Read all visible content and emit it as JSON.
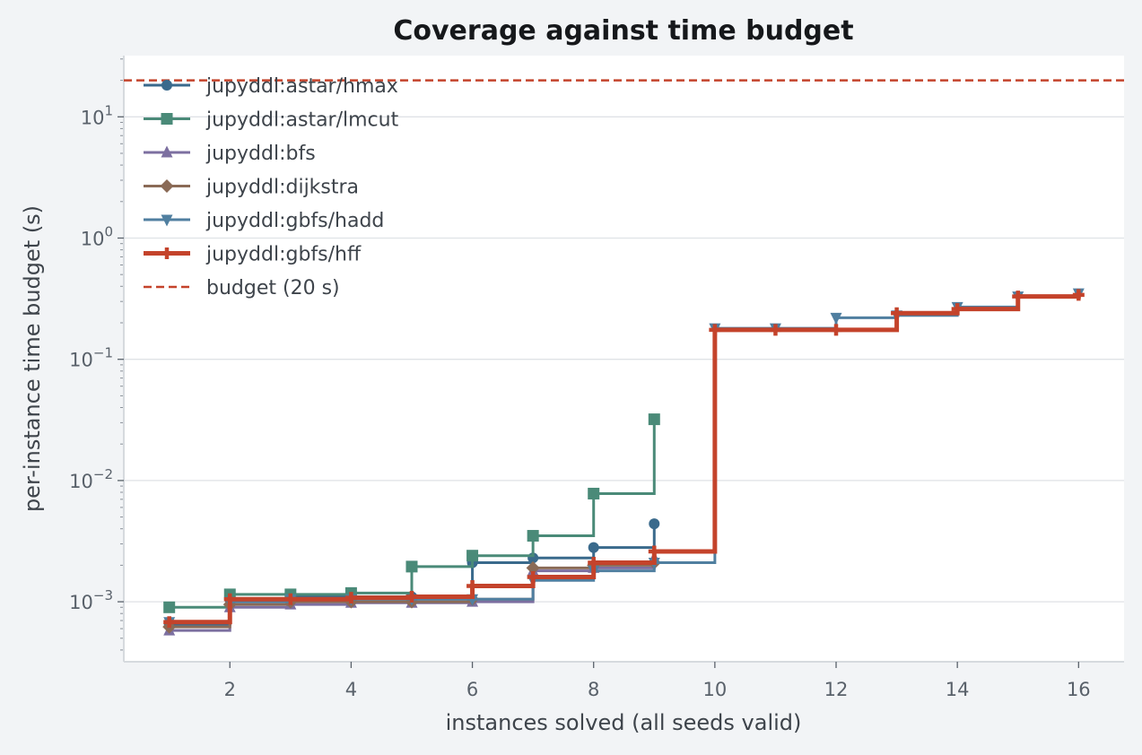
{
  "chart_data": {
    "type": "line",
    "title": "Coverage against time budget",
    "xlabel": "instances solved (all seeds valid)",
    "ylabel": "per-instance time budget (s)",
    "xscale": "linear",
    "yscale": "log",
    "xlim": [
      0.25,
      16.75
    ],
    "ylim": [
      0.00032,
      32
    ],
    "xticks": [
      2,
      4,
      6,
      8,
      10,
      12,
      14,
      16
    ],
    "yticks": [
      {
        "value": 0.001,
        "base": "10",
        "exp": "−3"
      },
      {
        "value": 0.01,
        "base": "10",
        "exp": "−2"
      },
      {
        "value": 0.1,
        "base": "10",
        "exp": "−1"
      },
      {
        "value": 1,
        "base": "10",
        "exp": "0"
      },
      {
        "value": 10,
        "base": "10",
        "exp": "1"
      }
    ],
    "grid": "horizontal",
    "legend_position": "top-left",
    "step": "post",
    "background": "#ffffff",
    "series": [
      {
        "name": "jupyddl:astar/hmax",
        "color": "#3a6a8c",
        "marker": "circle",
        "x": [
          1,
          2,
          3,
          4,
          5,
          6,
          7,
          8,
          9
        ],
        "y": [
          0.00065,
          0.00105,
          0.0011,
          0.0011,
          0.0011,
          0.0021,
          0.0023,
          0.0028,
          0.0044
        ]
      },
      {
        "name": "jupyddl:astar/lmcut",
        "color": "#4a8a78",
        "marker": "square",
        "x": [
          1,
          2,
          3,
          4,
          5,
          6,
          7,
          8,
          9
        ],
        "y": [
          0.0009,
          0.00115,
          0.00115,
          0.00118,
          0.00195,
          0.0024,
          0.0035,
          0.0078,
          0.032
        ]
      },
      {
        "name": "jupyddl:bfs",
        "color": "#7c6fa0",
        "marker": "triangle-up",
        "x": [
          1,
          2,
          3,
          4,
          5,
          6,
          7,
          8,
          9
        ],
        "y": [
          0.00058,
          0.0009,
          0.00095,
          0.00098,
          0.00098,
          0.001,
          0.0018,
          0.0019,
          0.0023
        ]
      },
      {
        "name": "jupyddl:dijkstra",
        "color": "#8a6a56",
        "marker": "diamond",
        "x": [
          1,
          2,
          3,
          4,
          5,
          6,
          7,
          8,
          9
        ],
        "y": [
          0.00062,
          0.00095,
          0.001,
          0.001,
          0.001,
          0.00105,
          0.0019,
          0.002,
          0.0021
        ]
      },
      {
        "name": "jupyddl:gbfs/hadd",
        "color": "#507fa0",
        "marker": "triangle-down",
        "x": [
          1,
          2,
          3,
          4,
          5,
          6,
          7,
          8,
          9,
          10,
          11,
          12,
          13,
          14,
          15,
          16
        ],
        "y": [
          0.00068,
          0.001,
          0.00105,
          0.00105,
          0.00105,
          0.00105,
          0.0015,
          0.0018,
          0.0021,
          0.18,
          0.18,
          0.22,
          0.23,
          0.27,
          0.33,
          0.35
        ]
      },
      {
        "name": "jupyddl:gbfs/hff",
        "color": "#c4432b",
        "marker": "plus",
        "x": [
          1,
          2,
          3,
          4,
          5,
          6,
          7,
          8,
          9,
          10,
          11,
          12,
          13,
          14,
          15,
          16
        ],
        "y": [
          0.00068,
          0.00105,
          0.00105,
          0.00108,
          0.0011,
          0.00135,
          0.0016,
          0.0021,
          0.0026,
          0.175,
          0.175,
          0.175,
          0.24,
          0.26,
          0.33,
          0.34
        ]
      }
    ],
    "reference_line": {
      "name": "budget (20 s)",
      "value": 20,
      "color": "#c4432b",
      "style": "dashed"
    }
  }
}
